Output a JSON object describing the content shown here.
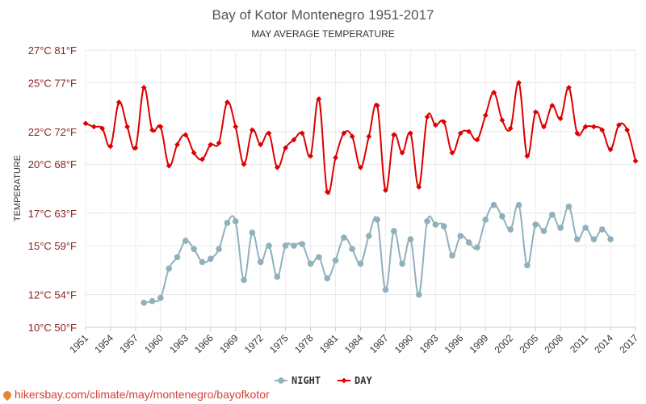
{
  "chart_data": {
    "type": "line",
    "title": "Bay of Kotor Montenegro 1951-2017",
    "subtitle": "MAY AVERAGE TEMPERATURE",
    "ylabel": "TEMPERATURE",
    "xlabel": "",
    "ylim": [
      10,
      27
    ],
    "y_ticks": [
      {
        "value": 10,
        "label": "10°C 50°F"
      },
      {
        "value": 12,
        "label": "12°C 54°F"
      },
      {
        "value": 15,
        "label": "15°C 59°F"
      },
      {
        "value": 17,
        "label": "17°C 63°F"
      },
      {
        "value": 20,
        "label": "20°C 68°F"
      },
      {
        "value": 22,
        "label": "22°C 72°F"
      },
      {
        "value": 25,
        "label": "25°C 77°F"
      },
      {
        "value": 27,
        "label": "27°C 81°F"
      }
    ],
    "x_ticks": [
      "1951",
      "1954",
      "1957",
      "1960",
      "1963",
      "1966",
      "1969",
      "1972",
      "1975",
      "1978",
      "1981",
      "1984",
      "1987",
      "1990",
      "1993",
      "1996",
      "1999",
      "2002",
      "2005",
      "2008",
      "2011",
      "2014",
      "2017"
    ],
    "x_start": 1951,
    "x_end": 2017,
    "grid": true,
    "legend_position": "bottom",
    "series": [
      {
        "name": "NIGHT",
        "color": "#90b1bb",
        "x": [
          1958,
          1959,
          1960,
          1961,
          1962,
          1963,
          1964,
          1965,
          1966,
          1967,
          1968,
          1969,
          1970,
          1971,
          1972,
          1973,
          1974,
          1975,
          1976,
          1977,
          1978,
          1979,
          1980,
          1981,
          1982,
          1983,
          1984,
          1985,
          1986,
          1987,
          1988,
          1989,
          1990,
          1991,
          1992,
          1993,
          1994,
          1995,
          1996,
          1997,
          1998,
          1999,
          2000,
          2001,
          2002,
          2003,
          2004,
          2005,
          2006,
          2007,
          2008,
          2009,
          2010,
          2011,
          2012,
          2013,
          2014
        ],
        "values": [
          11.5,
          11.6,
          11.8,
          13.6,
          14.3,
          15.3,
          14.8,
          14.0,
          14.2,
          14.8,
          16.4,
          16.5,
          12.9,
          15.8,
          14.0,
          15.0,
          13.1,
          15.0,
          15.0,
          15.1,
          13.9,
          14.3,
          13.0,
          14.1,
          15.5,
          14.8,
          13.9,
          15.6,
          16.6,
          12.3,
          15.9,
          13.9,
          15.4,
          12.0,
          16.5,
          16.3,
          16.2,
          14.4,
          15.6,
          15.2,
          14.9,
          16.6,
          17.5,
          16.8,
          16.0,
          17.5,
          13.8,
          16.3,
          15.9,
          16.9,
          16.1,
          17.4,
          15.4,
          16.1,
          15.4,
          16.0,
          15.4
        ]
      },
      {
        "name": "DAY",
        "color": "#dd0000",
        "x": [
          1951,
          1952,
          1953,
          1954,
          1955,
          1956,
          1957,
          1958,
          1959,
          1960,
          1961,
          1962,
          1963,
          1964,
          1965,
          1966,
          1967,
          1968,
          1969,
          1970,
          1971,
          1972,
          1973,
          1974,
          1975,
          1976,
          1977,
          1978,
          1979,
          1980,
          1981,
          1982,
          1983,
          1984,
          1985,
          1986,
          1987,
          1988,
          1989,
          1990,
          1991,
          1992,
          1993,
          1994,
          1995,
          1996,
          1997,
          1998,
          1999,
          2000,
          2001,
          2002,
          2003,
          2004,
          2005,
          2006,
          2007,
          2008,
          2009,
          2010,
          2011,
          2012,
          2013,
          2014,
          2015,
          2016,
          2017
        ],
        "values": [
          22.5,
          22.3,
          22.2,
          21.1,
          23.8,
          22.3,
          21.0,
          24.7,
          22.1,
          22.3,
          19.9,
          21.2,
          21.8,
          20.7,
          20.3,
          21.2,
          21.3,
          23.8,
          22.3,
          20.0,
          22.1,
          21.2,
          21.9,
          19.8,
          21.0,
          21.5,
          21.9,
          20.5,
          24.0,
          18.3,
          20.4,
          21.9,
          21.7,
          19.8,
          21.7,
          23.6,
          18.4,
          21.8,
          20.7,
          21.9,
          18.6,
          22.9,
          22.4,
          22.6,
          20.7,
          21.9,
          22.0,
          21.5,
          23.0,
          24.4,
          22.7,
          22.2,
          25.0,
          20.5,
          23.2,
          22.3,
          23.6,
          22.8,
          24.7,
          21.9,
          22.3,
          22.3,
          22.1,
          20.9,
          22.4,
          22.1,
          20.2
        ]
      }
    ]
  },
  "source_text": "hikersbay.com/climate/may/montenegro/bayofkotor"
}
